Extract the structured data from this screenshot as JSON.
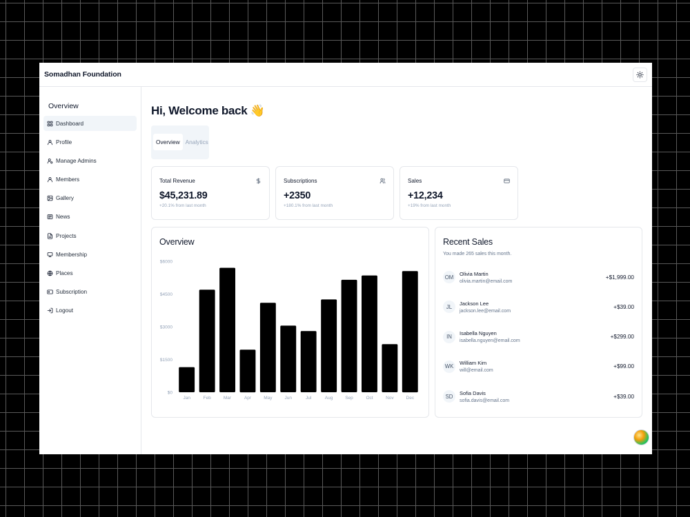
{
  "app": {
    "title": "Somadhan Foundation"
  },
  "sidebar": {
    "title": "Overview",
    "items": [
      {
        "label": "Dashboard",
        "icon": "dashboard-icon",
        "active": true
      },
      {
        "label": "Profile",
        "icon": "user-icon"
      },
      {
        "label": "Manage Admins",
        "icon": "user-cog-icon"
      },
      {
        "label": "Members",
        "icon": "user-icon"
      },
      {
        "label": "Gallery",
        "icon": "image-icon"
      },
      {
        "label": "News",
        "icon": "newspaper-icon"
      },
      {
        "label": "Projects",
        "icon": "file-icon"
      },
      {
        "label": "Membership",
        "icon": "membership-icon"
      },
      {
        "label": "Places",
        "icon": "globe-icon"
      },
      {
        "label": "Subscription",
        "icon": "card-icon"
      },
      {
        "label": "Logout",
        "icon": "logout-icon"
      }
    ]
  },
  "main": {
    "greeting": "Hi, Welcome back 👋",
    "tabs": [
      {
        "label": "Overview",
        "active": true
      },
      {
        "label": "Analytics"
      }
    ],
    "stats": [
      {
        "title": "Total Revenue",
        "icon": "dollar-icon",
        "value": "$45,231.89",
        "sub": "+20.1% from last month"
      },
      {
        "title": "Subscriptions",
        "icon": "users-icon",
        "value": "+2350",
        "sub": "+180.1% from last month"
      },
      {
        "title": "Sales",
        "icon": "credit-card-icon",
        "value": "+12,234",
        "sub": "+19% from last month"
      }
    ],
    "overview": {
      "title": "Overview"
    },
    "recent_sales": {
      "title": "Recent Sales",
      "subtitle": "You made 265 sales this month.",
      "items": [
        {
          "initials": "OM",
          "name": "Olivia Martin",
          "email": "olivia.martin@email.com",
          "amount": "+$1,999.00"
        },
        {
          "initials": "JL",
          "name": "Jackson Lee",
          "email": "jackson.lee@email.com",
          "amount": "+$39.00"
        },
        {
          "initials": "IN",
          "name": "Isabella Nguyen",
          "email": "isabella.nguyen@email.com",
          "amount": "+$299.00"
        },
        {
          "initials": "WK",
          "name": "William Kim",
          "email": "will@email.com",
          "amount": "+$99.00"
        },
        {
          "initials": "SD",
          "name": "Sofia Davis",
          "email": "sofia.davis@email.com",
          "amount": "+$39.00"
        }
      ]
    }
  },
  "chart_data": {
    "type": "bar",
    "categories": [
      "Jan",
      "Feb",
      "Mar",
      "Apr",
      "May",
      "Jun",
      "Jul",
      "Aug",
      "Sep",
      "Oct",
      "Nov",
      "Dec"
    ],
    "values": [
      1150,
      4700,
      5700,
      1950,
      4100,
      3050,
      2800,
      4250,
      5150,
      5350,
      2200,
      5550
    ],
    "yticks": [
      "$0",
      "$1500",
      "$3000",
      "$4500",
      "$6000"
    ],
    "ylim": [
      0,
      6000
    ],
    "bar_color": "#000000",
    "grid": false
  },
  "colors": {
    "accent": "#0f172a",
    "muted": "#94a3b8",
    "border": "#e5e7eb"
  }
}
